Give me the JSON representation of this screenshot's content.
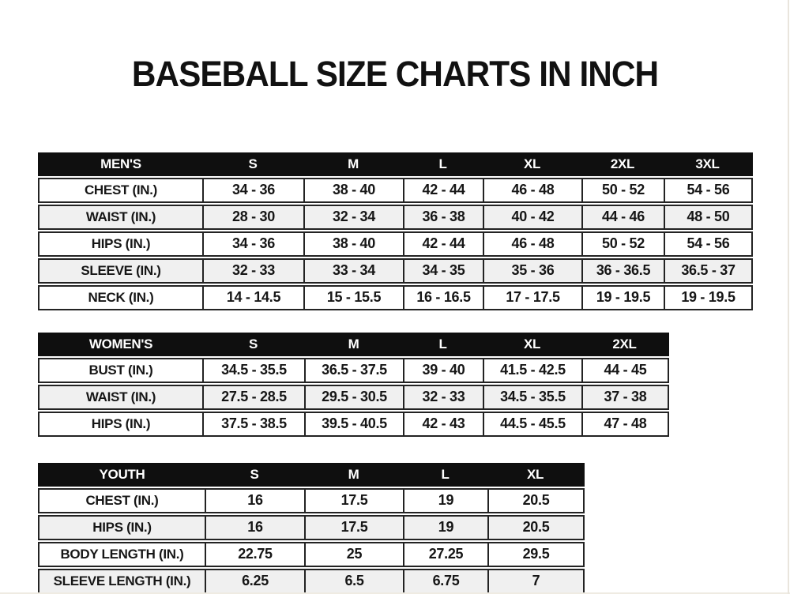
{
  "page": {
    "title": "BASEBALL SIZE CHARTS IN INCH"
  },
  "colors": {
    "header_bg": "#0f0f0f",
    "header_text": "#ffffff",
    "stripe": "#f0f0f0",
    "border": "#232323"
  },
  "tables": [
    {
      "id": "mens",
      "header": [
        "MEN'S",
        "S",
        "M",
        "L",
        "XL",
        "2XL",
        "3XL"
      ],
      "rows": [
        {
          "label": "CHEST (IN.)",
          "values": [
            "34 - 36",
            "38 - 40",
            "42 - 44",
            "46 - 48",
            "50 - 52",
            "54 - 56"
          ]
        },
        {
          "label": "WAIST (IN.)",
          "values": [
            "28 - 30",
            "32 - 34",
            "36 - 38",
            "40 - 42",
            "44 - 46",
            "48 - 50"
          ]
        },
        {
          "label": "HIPS (IN.)",
          "values": [
            "34 - 36",
            "38 - 40",
            "42 - 44",
            "46 - 48",
            "50 - 52",
            "54 - 56"
          ]
        },
        {
          "label": "SLEEVE (IN.)",
          "values": [
            "32 - 33",
            "33 - 34",
            "34 - 35",
            "35 - 36",
            "36 - 36.5",
            "36.5 - 37"
          ]
        },
        {
          "label": "NECK (IN.)",
          "values": [
            "14 - 14.5",
            "15 - 15.5",
            "16 - 16.5",
            "17 - 17.5",
            "19 - 19.5",
            "19 - 19.5"
          ]
        }
      ]
    },
    {
      "id": "womens",
      "header": [
        "WOMEN'S",
        "S",
        "M",
        "L",
        "XL",
        "2XL"
      ],
      "rows": [
        {
          "label": "BUST (IN.)",
          "values": [
            "34.5 - 35.5",
            "36.5 - 37.5",
            "39 - 40",
            "41.5 - 42.5",
            "44 - 45"
          ]
        },
        {
          "label": "WAIST (IN.)",
          "values": [
            "27.5 - 28.5",
            "29.5 - 30.5",
            "32 - 33",
            "34.5 - 35.5",
            "37 - 38"
          ]
        },
        {
          "label": "HIPS (IN.)",
          "values": [
            "37.5 - 38.5",
            "39.5 - 40.5",
            "42 - 43",
            "44.5 - 45.5",
            "47 - 48"
          ]
        }
      ]
    },
    {
      "id": "youth",
      "header": [
        "YOUTH",
        "S",
        "M",
        "L",
        "XL"
      ],
      "rows": [
        {
          "label": "CHEST (IN.)",
          "values": [
            "16",
            "17.5",
            "19",
            "20.5"
          ]
        },
        {
          "label": "HIPS (IN.)",
          "values": [
            "16",
            "17.5",
            "19",
            "20.5"
          ]
        },
        {
          "label": "BODY LENGTH (IN.)",
          "values": [
            "22.75",
            "25",
            "27.25",
            "29.5"
          ]
        },
        {
          "label": "SLEEVE LENGTH (IN.)",
          "values": [
            "6.25",
            "6.5",
            "6.75",
            "7"
          ]
        }
      ]
    }
  ]
}
